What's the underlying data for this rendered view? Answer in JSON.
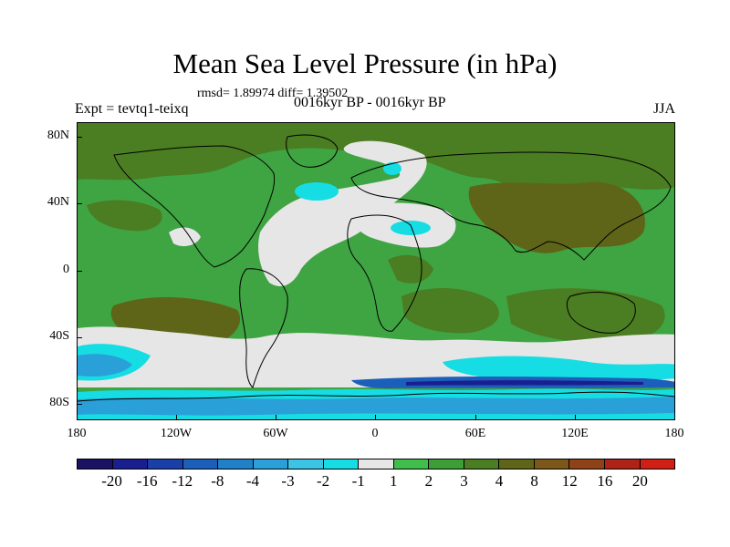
{
  "title": "Mean Sea Level Pressure (in hPa)",
  "stats": "rmsd= 1.89974 diff= 1.39502",
  "expt": "Expt = tevtq1-teixq",
  "period": "0016kyr BP - 0016kyr BP",
  "season": "JJA",
  "lat_labels": [
    "80N",
    "40N",
    "0",
    "40S",
    "80S"
  ],
  "lon_labels": [
    "180",
    "120W",
    "60W",
    "0",
    "60E",
    "120E",
    "180"
  ],
  "colorbar": {
    "colors": [
      "#1c1264",
      "#1a1f90",
      "#1b3fa8",
      "#1c5fbb",
      "#2080c8",
      "#29a0d8",
      "#3cc4e6",
      "#16dde3",
      "#e6e6e6",
      "#40be4c",
      "#3c9e35",
      "#4b7d22",
      "#5e6518",
      "#7b5819",
      "#8f4117",
      "#ae2317",
      "#d21f16"
    ],
    "labels": [
      "-20",
      "-16",
      "-12",
      "-8",
      "-4",
      "-3",
      "-2",
      "-1",
      "1",
      "2",
      "3",
      "4",
      "8",
      "12",
      "16",
      "20"
    ]
  },
  "colors": {
    "green_light": "#40be4c",
    "green_mid": "#3c9e35",
    "olive": "#4b7d22",
    "brown": "#5e6518",
    "gray": "#e6e6e6",
    "cyan": "#16dde3",
    "sky": "#29a0d8",
    "blue": "#1c5fbb",
    "navy": "#1a1f90"
  }
}
